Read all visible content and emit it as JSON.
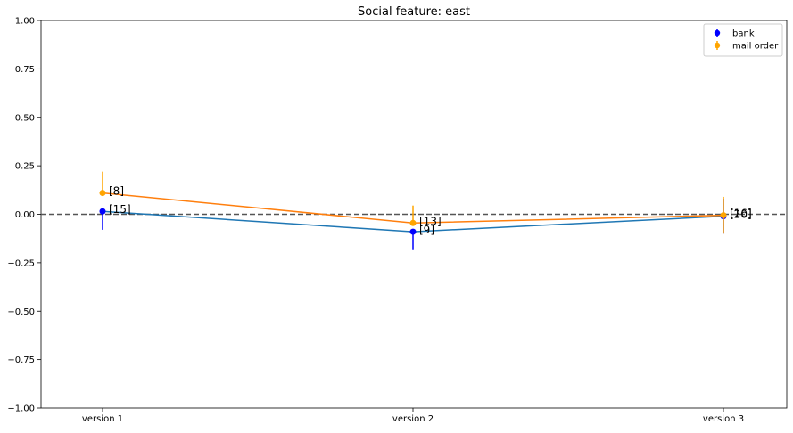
{
  "chart_data": {
    "type": "line",
    "title": "Social feature: east",
    "categories": [
      "version 1",
      "version 2",
      "version 3"
    ],
    "ylim": [
      -1.0,
      1.0
    ],
    "yticks": [
      "1.00",
      "0.75",
      "0.50",
      "0.25",
      "0.00",
      "−0.25",
      "−0.50",
      "−0.75",
      "−1.00"
    ],
    "ytick_values": [
      1.0,
      0.75,
      0.5,
      0.25,
      0.0,
      -0.25,
      -0.5,
      -0.75,
      -1.0
    ],
    "grid": false,
    "reference_line": 0.0,
    "legend_position": "top-right",
    "series": [
      {
        "name": "bank",
        "marker_color": "#0000ff",
        "line_color": "#1f77b4",
        "values": [
          0.015,
          -0.09,
          -0.01
        ],
        "err_low": [
          -0.08,
          -0.185,
          -0.1
        ],
        "err_high": [
          0.015,
          -0.09,
          0.08
        ],
        "labels": [
          "[15]",
          "[9]",
          "[20]"
        ]
      },
      {
        "name": "mail order",
        "marker_color": "#ffa500",
        "line_color": "#ff7f0e",
        "values": [
          0.11,
          -0.045,
          -0.005
        ],
        "err_low": [
          0.11,
          -0.045,
          -0.1
        ],
        "err_high": [
          0.22,
          0.045,
          0.09
        ],
        "labels": [
          "[8]",
          "[13]",
          "[16]"
        ]
      }
    ]
  }
}
